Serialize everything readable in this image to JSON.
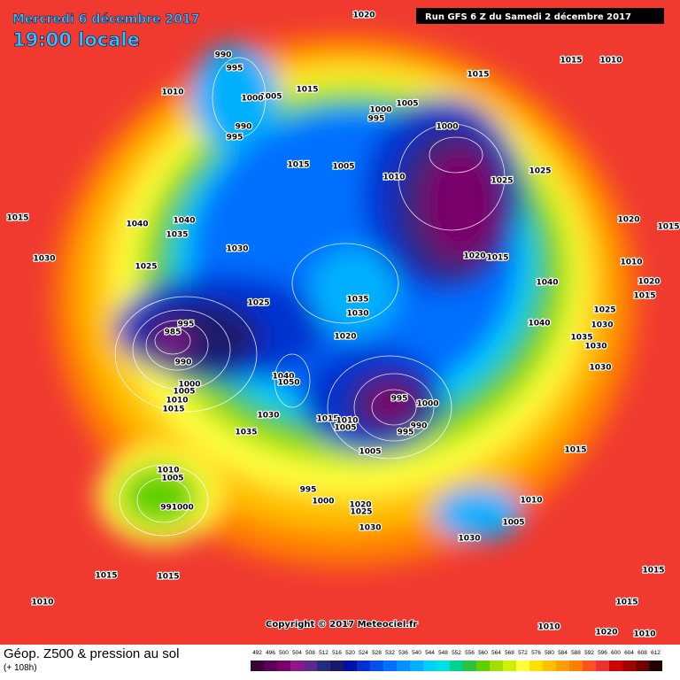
{
  "header": {
    "date": "Mercredi 6 décembre 2017",
    "time": "19:00 locale",
    "run": "Run GFS 6 Z du Samedi 2 décembre 2017"
  },
  "isobar_labels": [
    "1020",
    "1015",
    "1015",
    "1010",
    "990",
    "995",
    "1010",
    "1005",
    "1000",
    "1015",
    "1005",
    "1000",
    "995",
    "990",
    "995",
    "1000",
    "1015",
    "1005",
    "1010",
    "1025",
    "1025",
    "1040",
    "1040",
    "1035",
    "1015",
    "1015",
    "1020",
    "1030",
    "1030",
    "1025",
    "1020",
    "1015",
    "1010",
    "1020",
    "1015",
    "1040",
    "1025",
    "1035",
    "1030",
    "1025",
    "995",
    "985",
    "1040",
    "1030",
    "1020",
    "1035",
    "1030",
    "990",
    "1030",
    "1040",
    "1050",
    "1000",
    "1005",
    "1010",
    "1015",
    "995",
    "1000",
    "1015",
    "1010",
    "1005",
    "1030",
    "990",
    "995",
    "1035",
    "1015",
    "1005",
    "1010",
    "1005",
    "995",
    "1000",
    "1020",
    "1025",
    "1010",
    "991000",
    "1030",
    "1005",
    "1030",
    "1015",
    "1015",
    "1015",
    "1010",
    "1015",
    "1010",
    "1020",
    "1010"
  ],
  "copyright": "Copyright © 2017 Meteociel.fr",
  "footer": {
    "title": "Géop. Z500 & pression au sol",
    "lead": "(+ 108h)",
    "scale": {
      "values": [
        492,
        496,
        500,
        504,
        508,
        512,
        516,
        520,
        524,
        528,
        532,
        536,
        540,
        544,
        548,
        552,
        556,
        560,
        564,
        568,
        572,
        576,
        580,
        584,
        588,
        592,
        596,
        600,
        604,
        608,
        612
      ],
      "colors": [
        "#3a003a",
        "#5a0055",
        "#7a006a",
        "#8a1a8a",
        "#5a2a8a",
        "#2a2a7a",
        "#1a1a6a",
        "#0010a0",
        "#0030d0",
        "#0050f0",
        "#0070ff",
        "#0090ff",
        "#00b0ff",
        "#00d0ff",
        "#00e0e0",
        "#00d090",
        "#30c040",
        "#60d000",
        "#a0e000",
        "#d0f000",
        "#ffff40",
        "#ffe000",
        "#ffc000",
        "#ffa000",
        "#ff8000",
        "#ff5020",
        "#f03030",
        "#d00000",
        "#a00000",
        "#700000",
        "#200000"
      ]
    }
  }
}
